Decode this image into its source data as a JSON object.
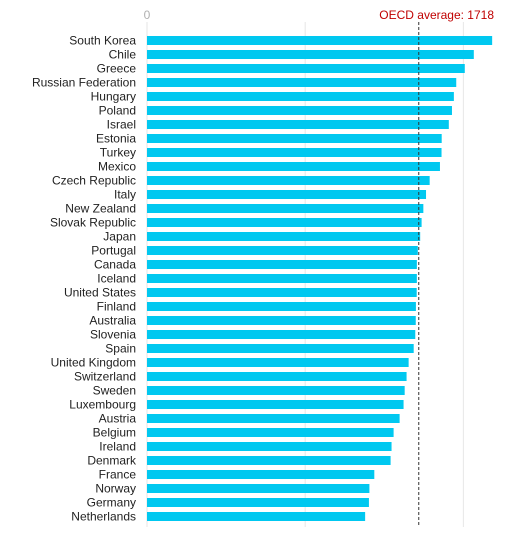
{
  "chart_data": {
    "type": "bar",
    "orientation": "horizontal",
    "categories": [
      "South Korea",
      "Chile",
      "Greece",
      "Russian Federation",
      "Hungary",
      "Poland",
      "Israel",
      "Estonia",
      "Turkey",
      "Mexico",
      "Czech Republic",
      "Italy",
      "New Zealand",
      "Slovak Republic",
      "Japan",
      "Portugal",
      "Canada",
      "Iceland",
      "United States",
      "Finland",
      "Australia",
      "Slovenia",
      "Spain",
      "United Kingdom",
      "Switzerland",
      "Sweden",
      "Luxembourg",
      "Austria",
      "Belgium",
      "Ireland",
      "Denmark",
      "France",
      "Norway",
      "Germany",
      "Netherlands"
    ],
    "values": [
      2182,
      2066,
      2009,
      1955,
      1940,
      1928,
      1908,
      1863,
      1862,
      1852,
      1787,
      1764,
      1747,
      1736,
      1727,
      1712,
      1706,
      1706,
      1705,
      1700,
      1699,
      1696,
      1686,
      1654,
      1641,
      1629,
      1622,
      1597,
      1559,
      1546,
      1540,
      1437,
      1406,
      1403,
      1379
    ],
    "xlim": [
      0,
      2200
    ],
    "ticks": [
      {
        "value": 0,
        "label": "0"
      },
      {
        "value": 1000,
        "label": ""
      },
      {
        "value": 2000,
        "label": ""
      }
    ],
    "reference_line": {
      "value": 1718,
      "label": "OECD average: 1718",
      "style": "dashed"
    },
    "grid": true,
    "colors": {
      "bar": "#00c8f0",
      "reference": "#c00000",
      "grid": "#e6e6e6",
      "tick_label": "#b0b0b0",
      "text": "#222222"
    }
  }
}
